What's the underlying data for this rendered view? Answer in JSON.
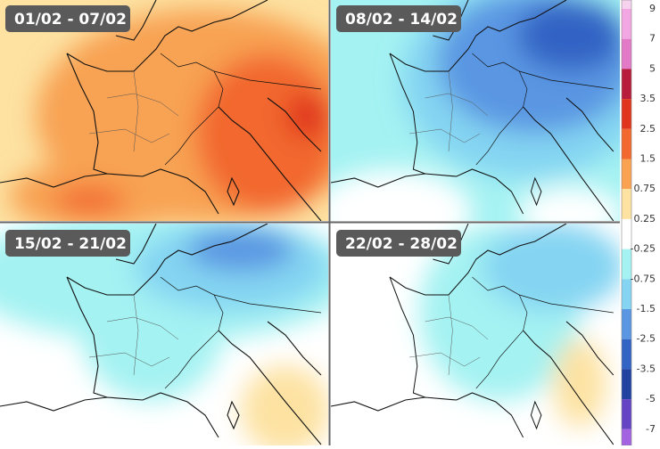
{
  "panels": [
    {
      "label": "01/02 - 07/02"
    },
    {
      "label": "08/02 - 14/02"
    },
    {
      "label": "15/02 - 21/02"
    },
    {
      "label": "22/02 - 28/02"
    }
  ],
  "colorbar": {
    "ticks": [
      "9",
      "7",
      "5",
      "3.5",
      "2.5",
      "1.5",
      "0.75",
      "0.25",
      "-0.25",
      "-0.75",
      "-1.5",
      "-2.5",
      "-3.5",
      "-5",
      "-7"
    ],
    "colors": [
      "#f6d2ee",
      "#f2a6e2",
      "#e27ac8",
      "#b81c3c",
      "#e0341e",
      "#f2682e",
      "#f8a252",
      "#fde2a2",
      "#ffffff",
      "#a4f2f2",
      "#84d4f2",
      "#5a96e2",
      "#3264c4",
      "#2242a2",
      "#6444c4",
      "#a464e2"
    ]
  }
}
